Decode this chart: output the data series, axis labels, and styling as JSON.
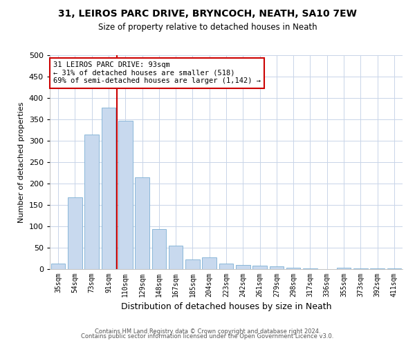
{
  "title": "31, LEIROS PARC DRIVE, BRYNCOCH, NEATH, SA10 7EW",
  "subtitle": "Size of property relative to detached houses in Neath",
  "xlabel": "Distribution of detached houses by size in Neath",
  "ylabel": "Number of detached properties",
  "bar_color": "#c8d9ee",
  "bar_edge_color": "#7bafd4",
  "categories": [
    "35sqm",
    "54sqm",
    "73sqm",
    "91sqm",
    "110sqm",
    "129sqm",
    "148sqm",
    "167sqm",
    "185sqm",
    "204sqm",
    "223sqm",
    "242sqm",
    "261sqm",
    "279sqm",
    "298sqm",
    "317sqm",
    "336sqm",
    "355sqm",
    "373sqm",
    "392sqm",
    "411sqm"
  ],
  "values": [
    13,
    167,
    314,
    378,
    346,
    215,
    93,
    55,
    23,
    28,
    13,
    10,
    8,
    6,
    4,
    2,
    0,
    3,
    1,
    1,
    2
  ],
  "property_line_x": 3.5,
  "annotation_text": "31 LEIROS PARC DRIVE: 93sqm\n← 31% of detached houses are smaller (518)\n69% of semi-detached houses are larger (1,142) →",
  "annotation_box_color": "#ffffff",
  "annotation_border_color": "#cc0000",
  "vline_color": "#cc0000",
  "footer_line1": "Contains HM Land Registry data © Crown copyright and database right 2024.",
  "footer_line2": "Contains public sector information licensed under the Open Government Licence v3.0.",
  "ylim": [
    0,
    500
  ],
  "yticks": [
    0,
    50,
    100,
    150,
    200,
    250,
    300,
    350,
    400,
    450,
    500
  ],
  "background_color": "#ffffff",
  "grid_color": "#c8d4e8"
}
